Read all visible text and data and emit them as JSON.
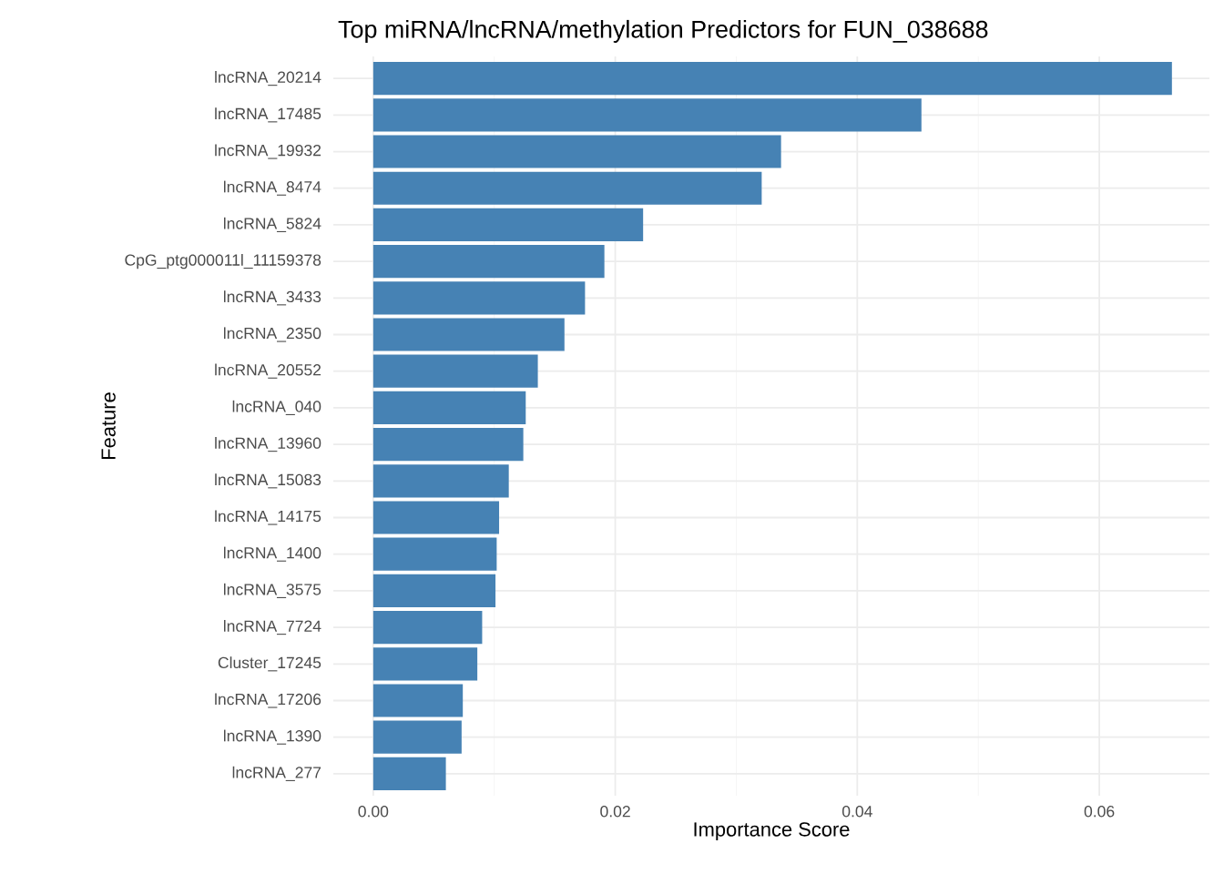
{
  "chart_data": {
    "type": "bar",
    "orientation": "horizontal",
    "title": "Top miRNA/lncRNA/methylation Predictors for FUN_038688",
    "xlabel": "Importance Score",
    "ylabel": "Feature",
    "categories": [
      "lncRNA_20214",
      "lncRNA_17485",
      "lncRNA_19932",
      "lncRNA_8474",
      "lncRNA_5824",
      "CpG_ptg000011l_11159378",
      "lncRNA_3433",
      "lncRNA_2350",
      "lncRNA_20552",
      "lncRNA_040",
      "lncRNA_13960",
      "lncRNA_15083",
      "lncRNA_14175",
      "lncRNA_1400",
      "lncRNA_3575",
      "lncRNA_7724",
      "Cluster_17245",
      "lncRNA_17206",
      "lncRNA_1390",
      "lncRNA_277"
    ],
    "values": [
      0.066,
      0.0453,
      0.0337,
      0.0321,
      0.0223,
      0.0191,
      0.0175,
      0.0158,
      0.0136,
      0.0126,
      0.0124,
      0.0112,
      0.0104,
      0.0102,
      0.0101,
      0.009,
      0.0086,
      0.0074,
      0.0073,
      0.006
    ],
    "color": "#4682b4",
    "xlim": [
      -0.0033,
      0.0691
    ],
    "xticks": [
      {
        "value": 0,
        "label": "0.00"
      },
      0.02,
      0.04,
      0.06
    ],
    "grid": true
  }
}
